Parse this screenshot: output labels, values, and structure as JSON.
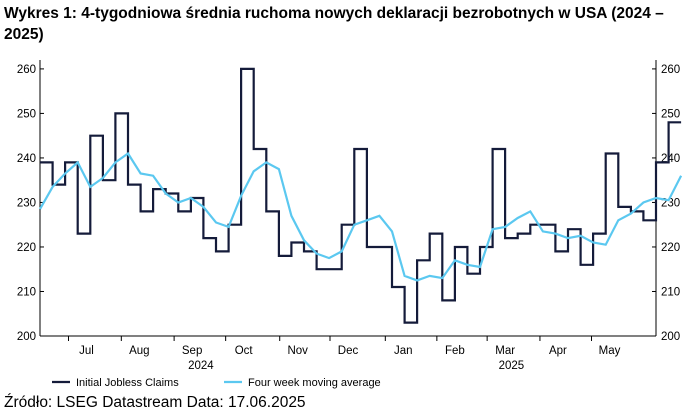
{
  "title": "Wykres 1: 4-tygodniowa średnia ruchoma nowych deklaracji bezrobotnych w USA (2024 – 2025)",
  "source": "Źródło: LSEG Datastream Data: 17.06.2025",
  "chart_data": {
    "type": "line",
    "y_ticks": [
      200,
      210,
      220,
      230,
      240,
      250,
      260
    ],
    "ylim": [
      200,
      262
    ],
    "x_ticks": [
      {
        "label": "Jul",
        "x": 3.7
      },
      {
        "label": "Aug",
        "x": 7.9
      },
      {
        "label": "Sep",
        "x": 12.1
      },
      {
        "label": "Oct",
        "x": 16.2
      },
      {
        "label": "Nov",
        "x": 20.5
      },
      {
        "label": "Dec",
        "x": 24.5
      },
      {
        "label": "Jan",
        "x": 28.9
      },
      {
        "label": "Feb",
        "x": 33.0
      },
      {
        "label": "Mar",
        "x": 37.0
      },
      {
        "label": "Apr",
        "x": 41.2
      },
      {
        "label": "May",
        "x": 45.3
      }
    ],
    "year_labels": [
      {
        "label": "2024",
        "x": 12.8
      },
      {
        "label": "2025",
        "x": 37.5
      }
    ],
    "xlim": [
      0,
      49
    ],
    "series": [
      {
        "name": "Initial Jobless Claims",
        "color": "#141b3a",
        "style": "step",
        "values": [
          239,
          234,
          239,
          223,
          245,
          235,
          250,
          234,
          228,
          233,
          232,
          228,
          231,
          222,
          219,
          225,
          260,
          242,
          228,
          218,
          221,
          219,
          215,
          215,
          225,
          242,
          220,
          220,
          211,
          203,
          217,
          223,
          208,
          220,
          214,
          220,
          242,
          222,
          223,
          225,
          225,
          219,
          224,
          216,
          223,
          241,
          229,
          228,
          226,
          239,
          248
        ]
      },
      {
        "name": "Four week moving average",
        "color": "#5bc8f0",
        "style": "line",
        "values": [
          228.5,
          233.5,
          236.5,
          239,
          233.5,
          235.5,
          239,
          241,
          236.5,
          236,
          232,
          230,
          231,
          229,
          225.5,
          224.5,
          231.5,
          237,
          239,
          237.5,
          227,
          221.5,
          218.5,
          217.5,
          219,
          225,
          226,
          227,
          223.5,
          213.5,
          212.5,
          213.5,
          213,
          217,
          216,
          215.5,
          224,
          224.5,
          226.5,
          228,
          223.5,
          223,
          222,
          222.5,
          221,
          220.5,
          226,
          227.5,
          230,
          231,
          230.5,
          236
        ]
      }
    ]
  }
}
